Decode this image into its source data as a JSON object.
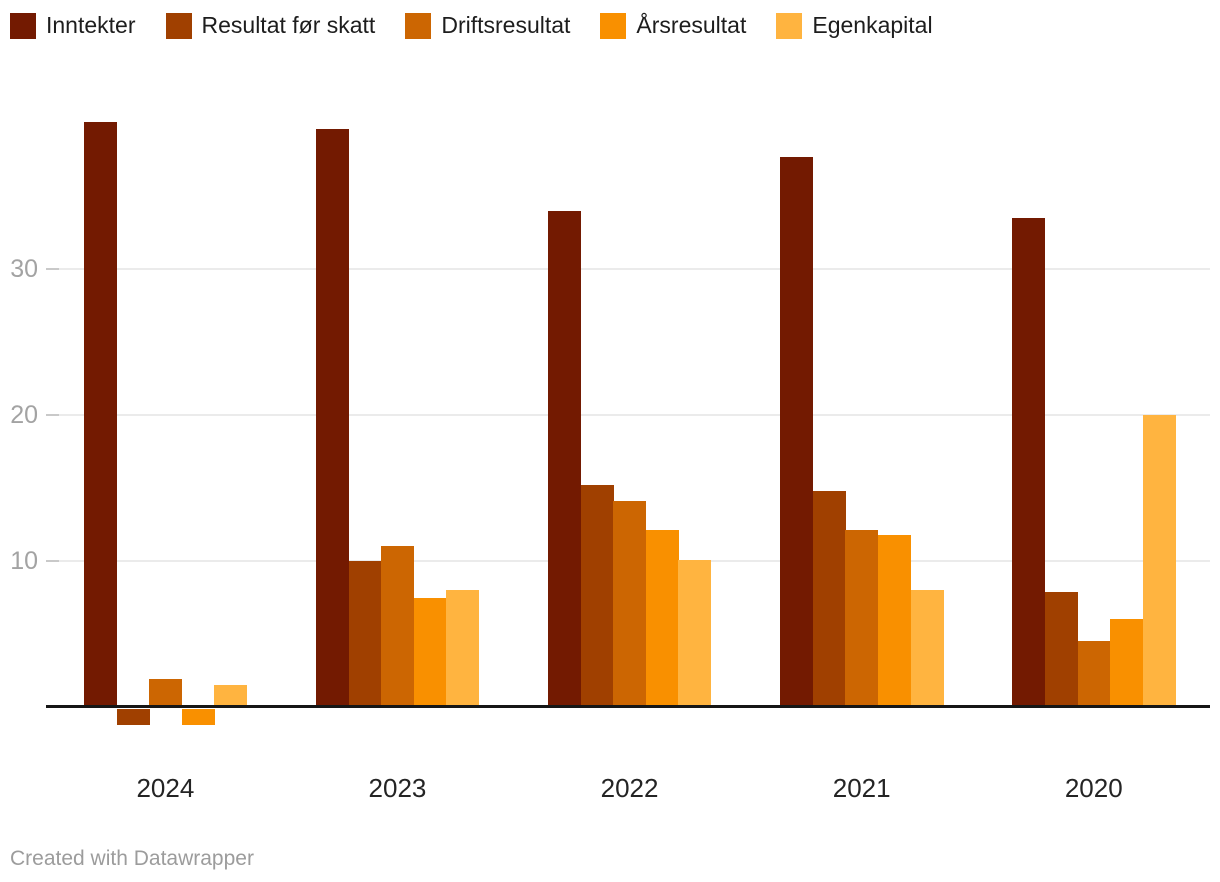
{
  "chart_data": {
    "type": "bar",
    "title": "",
    "categories": [
      "2024",
      "2023",
      "2022",
      "2021",
      "2020"
    ],
    "series": [
      {
        "name": "Inntekter",
        "color": "#731A01",
        "values": [
          40.1,
          39.6,
          34.0,
          37.7,
          33.5
        ]
      },
      {
        "name": "Resultat før skatt",
        "color": "#A04000",
        "values": [
          -1.1,
          10.0,
          15.2,
          14.8,
          7.9
        ]
      },
      {
        "name": "Driftsresultat",
        "color": "#CC6602",
        "values": [
          1.9,
          11.0,
          14.1,
          12.1,
          4.5
        ]
      },
      {
        "name": "Årsresultat",
        "color": "#F99000",
        "values": [
          -1.1,
          7.5,
          12.1,
          11.8,
          6.0
        ]
      },
      {
        "name": "Egenkapital",
        "color": "#FFB440",
        "values": [
          1.5,
          8.0,
          10.1,
          8.0,
          20.0
        ]
      }
    ],
    "yticks": [
      10,
      20,
      30
    ],
    "ylim": [
      -1.5,
      40.5
    ],
    "xlabel": "",
    "ylabel": "",
    "grid": "horizontal",
    "legend_position": "top"
  },
  "colors": {
    "background": "#ffffff",
    "gridline": "#ebebeb",
    "tick_mark": "#c9c9c9",
    "baseline": "#161616",
    "ytick_label": "#a3a3a3",
    "xtick_label": "#242424",
    "credit_text": "#9c9c9c"
  },
  "footer": {
    "credit": "Created with Datawrapper"
  }
}
